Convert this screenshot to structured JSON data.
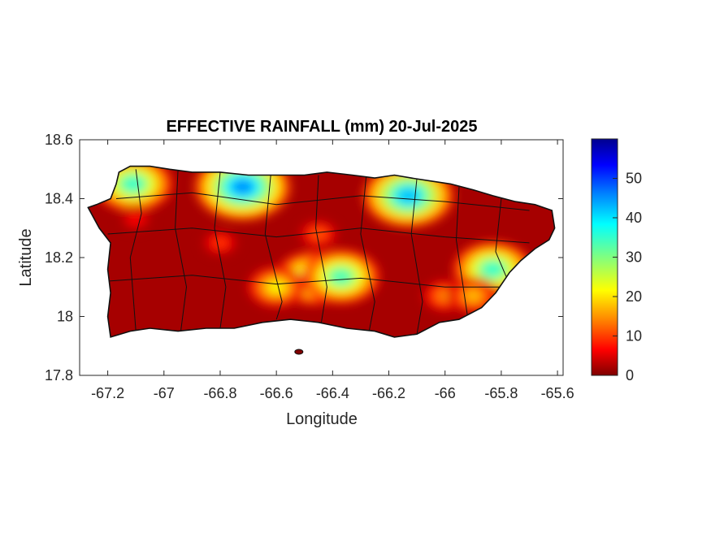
{
  "chart_data": {
    "type": "heatmap",
    "title": "EFFECTIVE RAINFALL (mm) 20-Jul-2025",
    "xlabel": "Longitude",
    "ylabel": "Latitude",
    "xlim": [
      -67.3,
      -65.58
    ],
    "ylim": [
      17.8,
      18.6
    ],
    "xticks": [
      -67.2,
      -67,
      -66.8,
      -66.6,
      -66.4,
      -66.2,
      -66,
      -65.8,
      -65.6
    ],
    "xtick_labels": [
      "-67.2",
      "-67",
      "-66.8",
      "-66.6",
      "-66.4",
      "-66.2",
      "-66",
      "-65.8",
      "-65.6"
    ],
    "yticks": [
      17.8,
      18,
      18.2,
      18.4,
      18.6
    ],
    "ytick_labels": [
      "17.8",
      "18",
      "18.2",
      "18.4",
      "18.6"
    ],
    "colorbar": {
      "min": 0,
      "max": 60,
      "ticks": [
        0,
        10,
        20,
        30,
        40,
        50
      ],
      "tick_labels": [
        "0",
        "10",
        "20",
        "30",
        "40",
        "50"
      ],
      "colormap": "jet",
      "colors": [
        "#7f0000",
        "#ff0000",
        "#ff8000",
        "#ffff00",
        "#80ff80",
        "#00ffff",
        "#0080ff",
        "#0000ff",
        "#00008f"
      ]
    },
    "rainfall_hotspots": [
      {
        "lon": -66.72,
        "lat": 18.44,
        "value": 45
      },
      {
        "lon": -66.13,
        "lat": 18.41,
        "value": 42
      },
      {
        "lon": -67.11,
        "lat": 18.45,
        "value": 35
      },
      {
        "lon": -66.47,
        "lat": 18.13,
        "value": 33
      },
      {
        "lon": -66.37,
        "lat": 18.135,
        "value": 34
      },
      {
        "lon": -65.83,
        "lat": 18.16,
        "value": 35
      },
      {
        "lon": -66.6,
        "lat": 18.1,
        "value": 22
      },
      {
        "lon": -66.0,
        "lat": 18.07,
        "value": 15
      },
      {
        "lon": -65.9,
        "lat": 18.07,
        "value": 18
      },
      {
        "lon": -66.45,
        "lat": 18.28,
        "value": 12
      },
      {
        "lon": -66.8,
        "lat": 18.25,
        "value": 10
      },
      {
        "lon": -67.1,
        "lat": 18.33,
        "value": 8
      }
    ],
    "background_value": 2
  }
}
